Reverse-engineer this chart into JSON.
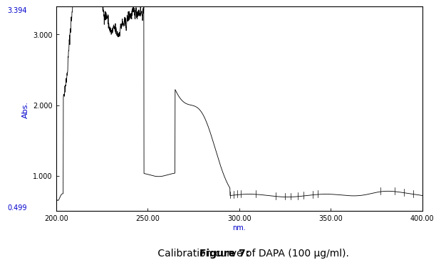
{
  "title": "Figure 7: Calibration curve of DAPA (100 μg/ml).",
  "xlabel": "nm.",
  "ylabel": "Abs.",
  "xlim": [
    200.0,
    400.0
  ],
  "ylim": [
    0.499,
    3.394
  ],
  "yticks": [
    1.0,
    2.0,
    3.0
  ],
  "ytick_labels": [
    "1.000",
    "2.000",
    "3.000"
  ],
  "xticks": [
    200.0,
    250.0,
    300.0,
    350.0,
    400.0
  ],
  "xtick_labels": [
    "200.00",
    "250.00",
    "300.00",
    "350.00",
    "400.00"
  ],
  "axis_color": "#0000cc",
  "line_color": "#000000",
  "background": "#ffffff",
  "annotation_color_orange": "#cc6600",
  "annotation_color_blue": "#0000cc",
  "annotation_fontsize": 5,
  "ylabel_fontsize": 8,
  "xlabel_fontsize": 7,
  "tick_fontsize": 7,
  "title_fontsize": 11,
  "caption_bold": "Figure 7:",
  "caption_normal": " Calibration curve of DAPA (100 μg/ml)."
}
